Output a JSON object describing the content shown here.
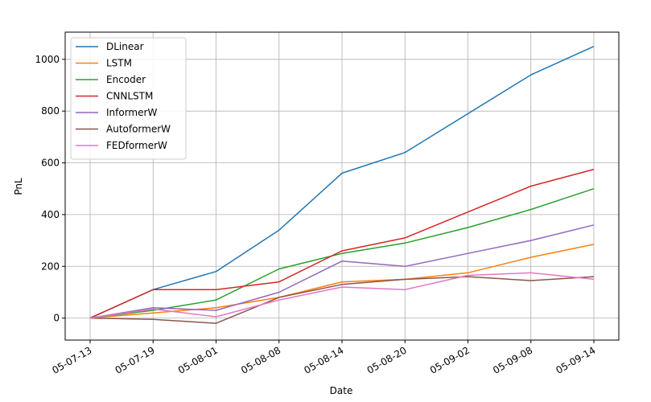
{
  "chart_data": {
    "type": "line",
    "title": "",
    "xlabel": "Date",
    "ylabel": "PnL",
    "x": [
      "05-07-13",
      "05-07-19",
      "05-08-01",
      "05-08-08",
      "05-08-14",
      "05-08-20",
      "05-09-02",
      "05-09-08",
      "05-09-14"
    ],
    "x_ticks": [
      "05-07-13",
      "05-07-19",
      "05-08-01",
      "05-08-08",
      "05-08-14",
      "05-08-20",
      "05-09-02",
      "05-09-08",
      "05-09-14"
    ],
    "y_ticks": [
      0,
      200,
      400,
      600,
      800,
      1000
    ],
    "ylim": [
      -85,
      1105
    ],
    "grid": true,
    "legend_position": "top-left",
    "series": [
      {
        "name": "DLinear",
        "color": "#1f77b4",
        "values": [
          0,
          110,
          180,
          340,
          560,
          640,
          790,
          940,
          1050
        ]
      },
      {
        "name": "LSTM",
        "color": "#ff7f0e",
        "values": [
          0,
          20,
          40,
          80,
          140,
          150,
          175,
          235,
          285
        ]
      },
      {
        "name": "Encoder",
        "color": "#2ca02c",
        "values": [
          0,
          30,
          70,
          190,
          250,
          290,
          350,
          420,
          500
        ]
      },
      {
        "name": "CNNLSTM",
        "color": "#d62728",
        "values": [
          0,
          110,
          110,
          140,
          260,
          310,
          410,
          510,
          575
        ]
      },
      {
        "name": "InformerW",
        "color": "#9467bd",
        "values": [
          0,
          40,
          30,
          100,
          220,
          200,
          250,
          300,
          360
        ]
      },
      {
        "name": "AutoformerW",
        "color": "#8c564b",
        "values": [
          0,
          -5,
          -20,
          80,
          130,
          150,
          160,
          145,
          160
        ]
      },
      {
        "name": "FEDformerW",
        "color": "#e377c2",
        "values": [
          0,
          35,
          5,
          70,
          120,
          110,
          165,
          175,
          150
        ]
      }
    ]
  }
}
